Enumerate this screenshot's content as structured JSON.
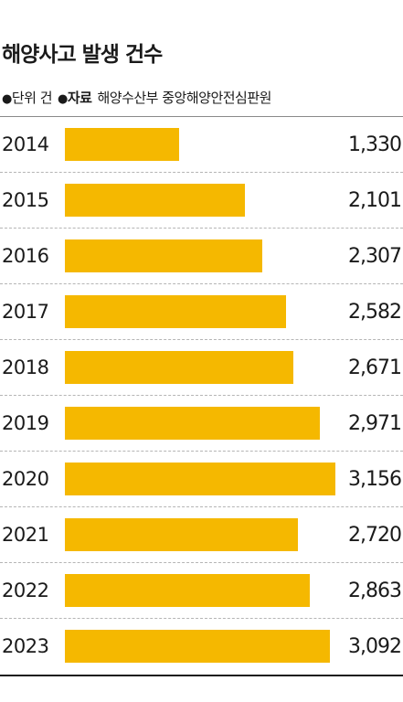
{
  "header": {
    "title": "해양사고 발생 건수",
    "unit_bullet": "●",
    "unit_text": "단위 건",
    "source_bullet": "●",
    "source_label": "자료",
    "source_text": "해양수산부 중앙해양안전심판원"
  },
  "colors": {
    "bar": "#f5b800",
    "text": "#1a1a1a"
  },
  "chart_data": {
    "type": "bar",
    "orientation": "horizontal",
    "title": "해양사고 발생 건수",
    "unit": "건",
    "categories": [
      "2014",
      "2015",
      "2016",
      "2017",
      "2018",
      "2019",
      "2020",
      "2021",
      "2022",
      "2023"
    ],
    "values": [
      1330,
      2101,
      2307,
      2582,
      2671,
      2971,
      3156,
      2720,
      2863,
      3092
    ],
    "value_labels": [
      "1,330",
      "2,101",
      "2,307",
      "2,582",
      "2,671",
      "2,971",
      "3,156",
      "2,720",
      "2,863",
      "3,092"
    ],
    "xlim": [
      0,
      3200
    ],
    "grid": false,
    "legend": "none"
  }
}
